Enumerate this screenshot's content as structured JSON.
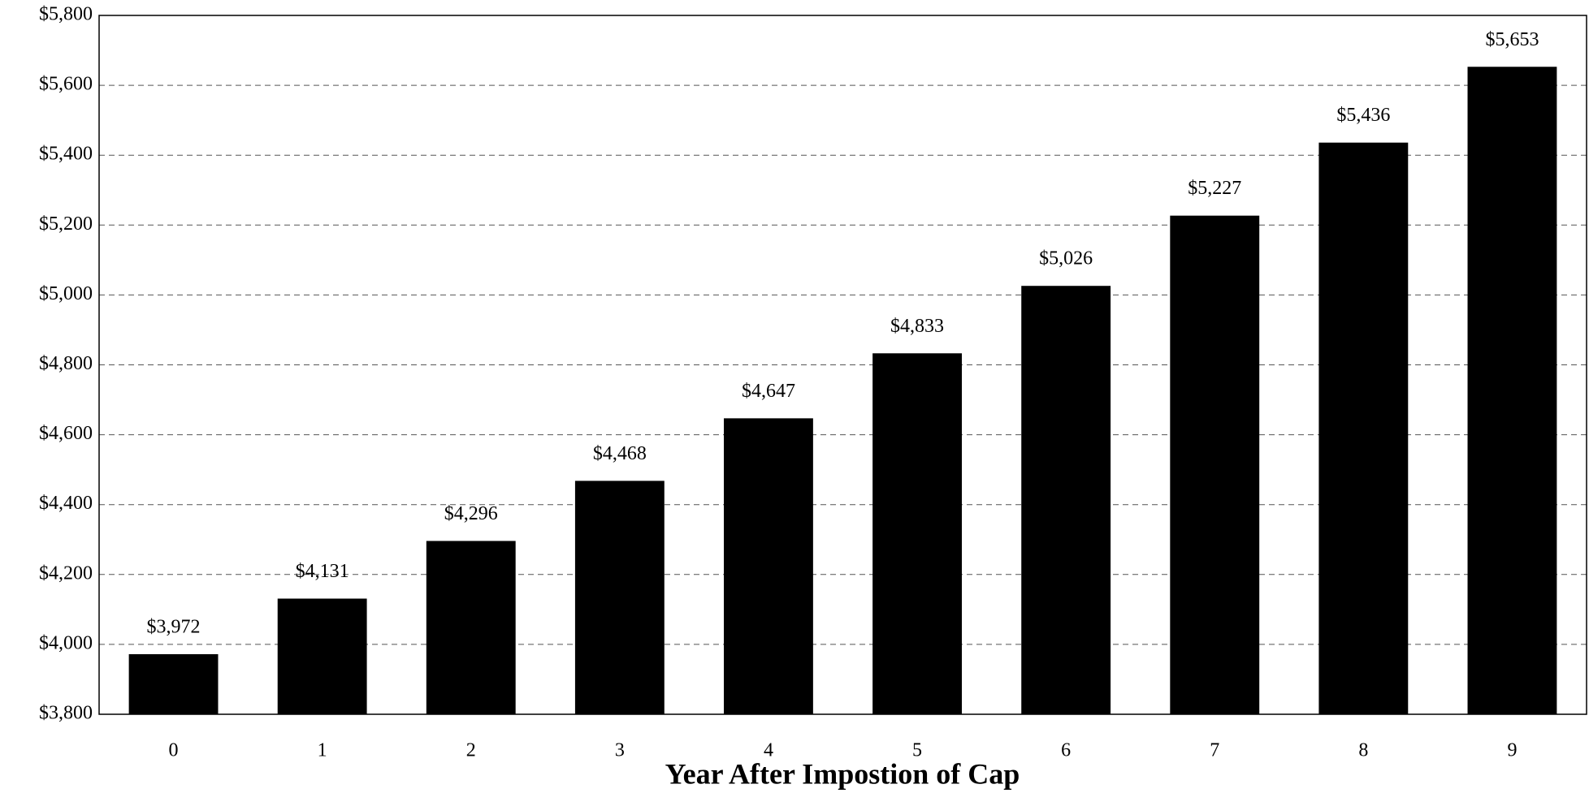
{
  "chart_data": {
    "type": "bar",
    "x_label": "Year After Impostion of Cap",
    "categories": [
      "0",
      "1",
      "2",
      "3",
      "4",
      "5",
      "6",
      "7",
      "8",
      "9"
    ],
    "values": [
      3972,
      4131,
      4296,
      4468,
      4647,
      4833,
      5026,
      5227,
      5436,
      5653
    ],
    "value_labels": [
      "$3,972",
      "$4,131",
      "$4,296",
      "$4,468",
      "$4,647",
      "$4,833",
      "$5,026",
      "$5,227",
      "$5,436",
      "$5,653"
    ],
    "color": "#000000",
    "ylim": [
      3800,
      5800
    ],
    "yticks": [
      {
        "value": 3800,
        "label": "$3,800"
      },
      {
        "value": 4000,
        "label": "$4,000"
      },
      {
        "value": 4200,
        "label": "$4,200"
      },
      {
        "value": 4400,
        "label": "$4,400"
      },
      {
        "value": 4600,
        "label": "$4,600"
      },
      {
        "value": 4800,
        "label": "$4,800"
      },
      {
        "value": 5000,
        "label": "$5,000"
      },
      {
        "value": 5200,
        "label": "$5,200"
      },
      {
        "value": 5400,
        "label": "$5,400"
      },
      {
        "value": 5600,
        "label": "$5,600"
      },
      {
        "value": 5800,
        "label": "$5,800"
      }
    ],
    "grid": true
  }
}
